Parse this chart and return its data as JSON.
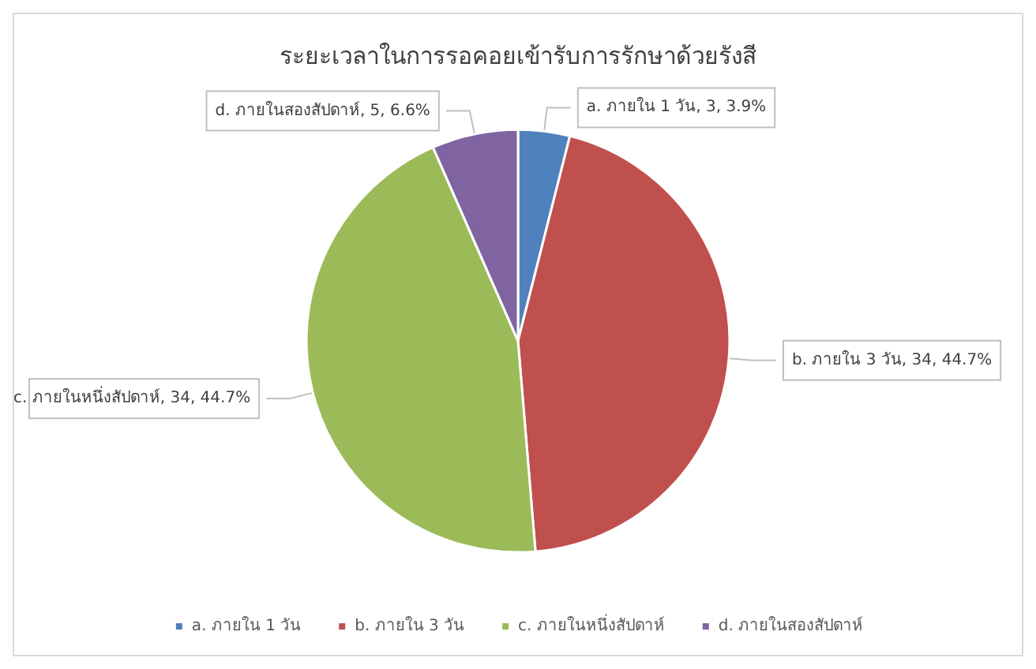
{
  "chart_data": {
    "type": "pie",
    "title": "ระยะเวลาในการรอคอยเข้ารับการรักษาด้วยรังสี",
    "categories": [
      "a. ภายใน 1 วัน",
      "b. ภายใน 3 วัน",
      "c. ภายในหนึ่งสัปดาห์",
      "d. ภายในสองสัปดาห์"
    ],
    "values": [
      3,
      34,
      34,
      5
    ],
    "value_labels": [
      "a. ภายใน 1 วัน, 3, 3.9%",
      "b. ภายใน 3 วัน, 34, 44.7%",
      "c. ภายในหนึ่งสัปดาห์, 34, 44.7%",
      "d. ภายในสองสัปดาห์, 5, 6.6%"
    ],
    "colors": [
      "#4f81bd",
      "#c0504d",
      "#9bbb59",
      "#8064a2"
    ],
    "legend": "bottom"
  }
}
